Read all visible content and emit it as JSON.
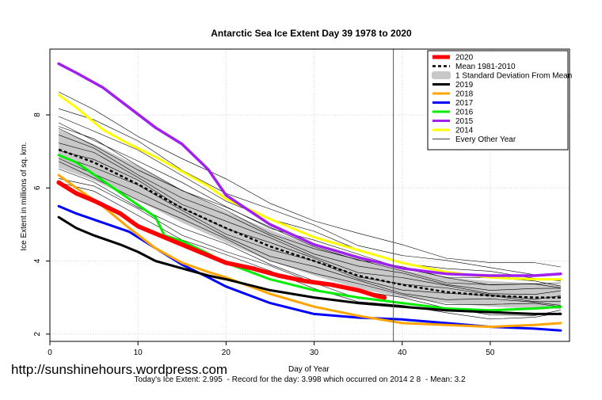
{
  "chart_data": {
    "type": "line",
    "title": "Antarctic Sea Ice Extent Day 39 1978 to 2020",
    "xlabel": "Day of Year",
    "ylabel": "Ice Extent in millions of sq. km.",
    "xlim": [
      0,
      59
    ],
    "ylim": [
      1.8,
      9.8
    ],
    "xticks": [
      0,
      10,
      20,
      30,
      40,
      50
    ],
    "yticks": [
      2,
      4,
      6,
      8
    ],
    "vertical_line_x": 39,
    "grid": true,
    "legend_position": "top-right",
    "legend": [
      {
        "label": "2020",
        "color": "#ff0000",
        "style": "thick"
      },
      {
        "label": "Mean 1981-2010",
        "color": "#000000",
        "style": "dashed"
      },
      {
        "label": "1 Standard Deviation From Mean",
        "color": "#c8c8c8",
        "style": "band"
      },
      {
        "label": "2019",
        "color": "#000000",
        "style": "solid"
      },
      {
        "label": "2018",
        "color": "#ffa500",
        "style": "solid"
      },
      {
        "label": "2017",
        "color": "#0000ff",
        "style": "solid"
      },
      {
        "label": "2016",
        "color": "#00ee00",
        "style": "solid"
      },
      {
        "label": "2015",
        "color": "#a020f0",
        "style": "solid"
      },
      {
        "label": "2014",
        "color": "#ffff00",
        "style": "solid"
      },
      {
        "label": "Every Other Year",
        "color": "#000000",
        "style": "thin"
      }
    ],
    "std_band": {
      "x": [
        1,
        5,
        10,
        15,
        20,
        25,
        30,
        35,
        40,
        45,
        50,
        55,
        58
      ],
      "upper": [
        7.6,
        7.2,
        6.6,
        5.95,
        5.35,
        4.85,
        4.4,
        4.05,
        3.75,
        3.55,
        3.45,
        3.4,
        3.35
      ],
      "lower": [
        6.55,
        6.2,
        5.65,
        5.05,
        4.5,
        4.0,
        3.6,
        3.25,
        3.0,
        2.85,
        2.75,
        2.7,
        2.7
      ]
    },
    "mean": {
      "x": [
        1,
        5,
        10,
        15,
        20,
        25,
        30,
        35,
        40,
        45,
        50,
        55,
        58
      ],
      "y": [
        7.05,
        6.7,
        6.1,
        5.45,
        4.9,
        4.4,
        4.0,
        3.6,
        3.35,
        3.15,
        3.05,
        3.0,
        3.0
      ]
    },
    "series": [
      {
        "name": "2020",
        "color": "#ff0000",
        "width": 5.5,
        "x": [
          1,
          3,
          5,
          8,
          10,
          12,
          15,
          18,
          20,
          23,
          26,
          29,
          32,
          35,
          37,
          38
        ],
        "y": [
          6.15,
          5.85,
          5.65,
          5.3,
          4.95,
          4.75,
          4.45,
          4.15,
          3.95,
          3.8,
          3.6,
          3.45,
          3.35,
          3.2,
          3.05,
          3.0
        ]
      },
      {
        "name": "2019",
        "color": "#000000",
        "width": 3,
        "x": [
          1,
          3,
          5,
          8,
          10,
          12,
          15,
          18,
          20,
          25,
          30,
          35,
          40,
          45,
          50,
          55,
          58
        ],
        "y": [
          5.2,
          4.9,
          4.7,
          4.45,
          4.25,
          4.0,
          3.8,
          3.6,
          3.5,
          3.2,
          3.0,
          2.85,
          2.75,
          2.65,
          2.6,
          2.55,
          2.55
        ]
      },
      {
        "name": "2018",
        "color": "#ffa500",
        "width": 3,
        "x": [
          1,
          3,
          6,
          9,
          12,
          15,
          18,
          20,
          25,
          30,
          35,
          40,
          45,
          50,
          55,
          58
        ],
        "y": [
          6.35,
          6.0,
          5.5,
          4.9,
          4.35,
          3.95,
          3.7,
          3.55,
          3.1,
          2.75,
          2.5,
          2.3,
          2.25,
          2.2,
          2.25,
          2.3
        ]
      },
      {
        "name": "2017",
        "color": "#0000ff",
        "width": 3,
        "x": [
          1,
          3,
          6,
          9,
          12,
          15,
          18,
          20,
          25,
          30,
          35,
          40,
          45,
          50,
          55,
          58
        ],
        "y": [
          5.5,
          5.3,
          5.05,
          4.8,
          4.35,
          3.9,
          3.55,
          3.3,
          2.85,
          2.55,
          2.45,
          2.4,
          2.3,
          2.2,
          2.15,
          2.1
        ]
      },
      {
        "name": "2016",
        "color": "#00ee00",
        "width": 3,
        "x": [
          1,
          3,
          6,
          9,
          12,
          13,
          15,
          18,
          20,
          25,
          30,
          35,
          40,
          45,
          50,
          55,
          58
        ],
        "y": [
          6.9,
          6.7,
          6.2,
          5.7,
          5.2,
          4.7,
          4.55,
          4.2,
          3.95,
          3.5,
          3.2,
          3.0,
          2.85,
          2.7,
          2.65,
          2.7,
          2.75
        ]
      },
      {
        "name": "2015",
        "color": "#a020f0",
        "width": 3.5,
        "x": [
          1,
          3,
          6,
          9,
          12,
          15,
          18,
          20,
          25,
          30,
          35,
          40,
          45,
          50,
          55,
          58
        ],
        "y": [
          9.4,
          9.15,
          8.75,
          8.2,
          7.65,
          7.2,
          6.5,
          5.8,
          5.0,
          4.45,
          4.1,
          3.8,
          3.65,
          3.6,
          3.6,
          3.65
        ]
      },
      {
        "name": "2014",
        "color": "#ffff00",
        "width": 3,
        "x": [
          1,
          3,
          6,
          9,
          12,
          15,
          18,
          20,
          25,
          30,
          35,
          40,
          45,
          50,
          55,
          58
        ],
        "y": [
          8.55,
          8.2,
          7.6,
          7.2,
          6.85,
          6.45,
          6.05,
          5.7,
          5.15,
          4.65,
          4.3,
          3.95,
          3.7,
          3.55,
          3.5,
          3.5
        ]
      }
    ]
  },
  "watermark": "http://sunshinehours.wordpress.com",
  "footer": {
    "todays": "Today's Ice Extent: 2.995",
    "record": "-  Record for the day: 3.998 which occurred on 2014 2 8",
    "mean": "-  Mean: 3.2"
  }
}
